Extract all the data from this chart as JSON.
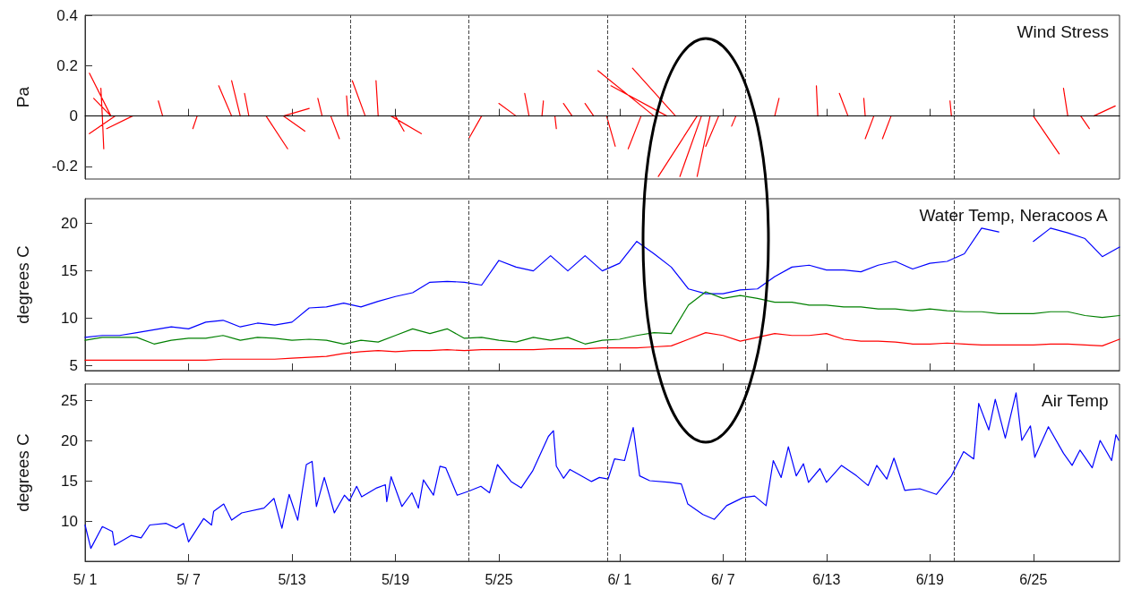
{
  "chart_data": [
    {
      "type": "line",
      "title": "Wind Stress",
      "ylabel": "Pa",
      "tick_labels": "y",
      "xlim": [
        "--05-01",
        "--06-30"
      ],
      "xticks": [
        {
          "value": "--05-01",
          "label": null
        },
        {
          "value": "--05-07",
          "label": null
        },
        {
          "value": "--05-13",
          "label": null
        },
        {
          "value": "--05-19",
          "label": null
        },
        {
          "value": "--05-25",
          "label": null
        },
        {
          "value": "--06-01",
          "label": null
        },
        {
          "value": "--06-07",
          "label": null
        },
        {
          "value": "--06-13",
          "label": null
        },
        {
          "value": "--06-19",
          "label": null
        },
        {
          "value": "--06-25",
          "label": null
        }
      ],
      "ylim": [
        -0.25,
        0.4
      ],
      "yticks": [
        -0.2,
        0,
        0.2,
        0.4
      ],
      "ref_lines": [
        {
          "axis": "y",
          "value": 0,
          "label": null,
          "color": "#000000"
        },
        {
          "axis": "x",
          "value": "--05-16T09:00",
          "label": null,
          "color": "#444444",
          "line_style": "dashed"
        },
        {
          "axis": "x",
          "value": "--05-23T06:00",
          "label": null,
          "color": "#444444",
          "line_style": "dashed"
        },
        {
          "axis": "x",
          "value": "--05-31T07:00",
          "label": null,
          "color": "#444444",
          "line_style": "dashed"
        },
        {
          "axis": "x",
          "value": "--06-08T07:00",
          "label": null,
          "color": "#444444",
          "line_style": "dashed"
        },
        {
          "axis": "x",
          "value": "--06-20T10:00",
          "label": null,
          "color": "#444444",
          "line_style": "dashed"
        }
      ],
      "series": [
        {
          "color": "#ff0000",
          "x": [
            "--05-02T12:00",
            "--05-01T06:00",
            null,
            "--05-02T00:00",
            "--05-01T22:00",
            null,
            "--05-02T12:00",
            "--05-01T12:00",
            null,
            "--05-02T00:00",
            "--05-02T02:00",
            null,
            "--05-02T18:00",
            "--05-01T06:00",
            null,
            "--05-03T18:00",
            "--05-02T06:00",
            null,
            "--05-05T12:00",
            "--05-05T06:00",
            null,
            "--05-07T12:00",
            "--05-07T06:00",
            null,
            "--05-09T12:00",
            "--05-08T18:00",
            null,
            "--05-10T00:00",
            "--05-09T12:00",
            null,
            "--05-10T12:00",
            "--05-10T06:00",
            null,
            "--05-11T12:00",
            "--05-12T18:00",
            null,
            "--05-12T12:00",
            "--05-13T18:00",
            null,
            "--05-12T12:00",
            "--05-14T00:00",
            null,
            "--05-14T18:00",
            "--05-14T12:00",
            null,
            "--05-15T06:00",
            "--05-15T18:00",
            null,
            "--05-16T06:00",
            "--05-16T04:00",
            null,
            "--05-17T06:00",
            "--05-16T12:00",
            null,
            "--05-18T00:00",
            "--05-17T21:00",
            null,
            "--05-18T18:00",
            "--05-20T12:00",
            null,
            "--05-19T00:00",
            "--05-19T12:00",
            null,
            "--05-24T00:00",
            "--05-23T06:00",
            null,
            "--05-26T00:00",
            "--05-25T00:00",
            null,
            "--05-26T18:00",
            "--05-26T12:00",
            null,
            "--05-27T12:00",
            "--05-27T14:00",
            null,
            "--05-28T06:00",
            "--05-28T08:00",
            null,
            "--05-29T06:00",
            "--05-28T18:00",
            null,
            "--05-30T12:00",
            "--05-30T00:00",
            null,
            "--06-03T00:00",
            "--05-30T18:00",
            null,
            "--06-04T06:00",
            "--06-01T18:00",
            null,
            "--06-03T18:00",
            "--05-31T12:00",
            null,
            "--05-31T06:00",
            "--05-31T18:00",
            null,
            "--06-02T06:00",
            "--06-01T12:00",
            null,
            "--06-05T12:00",
            "--06-03T06:00",
            null,
            "--06-05T18:00",
            "--06-04T12:00",
            null,
            "--06-06T06:00",
            "--06-05T12:00",
            null,
            "--06-06T18:00",
            "--06-06T00:00",
            null,
            "--06-07T18:00",
            "--06-07T12:00",
            null,
            "--06-10T00:00",
            "--06-10T06:00",
            null,
            "--06-12T12:00",
            "--06-12T10:00",
            null,
            "--06-14T06:00",
            "--06-13T18:00",
            null,
            "--06-15T06:00",
            "--06-15T04:00",
            null,
            "--06-15T18:00",
            "--06-15T06:00",
            null,
            "--06-16T18:00",
            "--06-16T06:00",
            null,
            "--06-20T06:00",
            "--06-20T04:00",
            null,
            "--06-25T00:00",
            "--06-26T12:00",
            null,
            "--06-27T00:00",
            "--06-26T18:00",
            null,
            "--06-27T18:00",
            "--06-28T06:00",
            null,
            "--06-28T12:00",
            "--06-29T18:00"
          ],
          "values": [
            0,
            0.17,
            null,
            0,
            0.11,
            null,
            0,
            0.07,
            null,
            0,
            -0.13,
            null,
            0,
            -0.07,
            null,
            0,
            -0.05,
            null,
            0,
            0.06,
            null,
            0,
            -0.05,
            null,
            0,
            0.12,
            null,
            0,
            0.14,
            null,
            0,
            0.09,
            null,
            0,
            -0.13,
            null,
            0,
            -0.06,
            null,
            0,
            0.03,
            null,
            0,
            0.07,
            null,
            0,
            -0.09,
            null,
            0,
            0.08,
            null,
            0,
            0.14,
            null,
            0,
            0.14,
            null,
            0,
            -0.07,
            null,
            0,
            -0.06,
            null,
            0,
            -0.09,
            null,
            0,
            0.05,
            null,
            0,
            0.09,
            null,
            0,
            0.06,
            null,
            0,
            -0.05,
            null,
            0,
            0.05,
            null,
            0,
            0.05,
            null,
            0,
            0.18,
            null,
            0,
            0.19,
            null,
            0,
            0.12,
            null,
            0,
            -0.12,
            null,
            0,
            -0.13,
            null,
            0,
            -0.24,
            null,
            0,
            -0.24,
            null,
            0,
            -0.24,
            null,
            0,
            -0.12,
            null,
            0,
            -0.04,
            null,
            0,
            0.07,
            null,
            0,
            0.12,
            null,
            0,
            0.09,
            null,
            0,
            0.07,
            null,
            0,
            -0.09,
            null,
            0,
            -0.09,
            null,
            0,
            0.06,
            null,
            0,
            -0.15,
            null,
            0,
            0.11,
            null,
            0,
            -0.05,
            null,
            0,
            0.04
          ]
        }
      ]
    },
    {
      "type": "line",
      "title": "Water Temp, Neracoos A",
      "ylabel": "degrees C",
      "tick_labels": "y",
      "xlim": [
        "--05-01",
        "--06-30"
      ],
      "xticks": [
        {
          "value": "--05-01",
          "label": null
        },
        {
          "value": "--05-07",
          "label": null
        },
        {
          "value": "--05-13",
          "label": null
        },
        {
          "value": "--05-19",
          "label": null
        },
        {
          "value": "--05-25",
          "label": null
        },
        {
          "value": "--06-01",
          "label": null
        },
        {
          "value": "--06-07",
          "label": null
        },
        {
          "value": "--06-13",
          "label": null
        },
        {
          "value": "--06-19",
          "label": null
        },
        {
          "value": "--06-25",
          "label": null
        }
      ],
      "ylim": [
        4.5,
        22.6
      ],
      "yticks": [
        5,
        10,
        15,
        20
      ],
      "ref_lines": [
        {
          "axis": "x",
          "value": "--05-16T09:00",
          "label": null,
          "color": "#444444",
          "line_style": "dashed"
        },
        {
          "axis": "x",
          "value": "--05-23T06:00",
          "label": null,
          "color": "#444444",
          "line_style": "dashed"
        },
        {
          "axis": "x",
          "value": "--05-31T07:00",
          "label": null,
          "color": "#444444",
          "line_style": "dashed"
        },
        {
          "axis": "x",
          "value": "--06-08T07:00",
          "label": null,
          "color": "#444444",
          "line_style": "dashed"
        },
        {
          "axis": "x",
          "value": "--06-20T10:00",
          "label": null,
          "color": "#444444",
          "line_style": "dashed"
        }
      ],
      "x": [
        "--05-01",
        "--05-02",
        "--05-03",
        "--05-04",
        "--05-05",
        "--05-06",
        "--05-07",
        "--05-08",
        "--05-09",
        "--05-10",
        "--05-11",
        "--05-12",
        "--05-13",
        "--05-14",
        "--05-15",
        "--05-16",
        "--05-17",
        "--05-18",
        "--05-19",
        "--05-20",
        "--05-21",
        "--05-22",
        "--05-23",
        "--05-24",
        "--05-25",
        "--05-26",
        "--05-27",
        "--05-28",
        "--05-29",
        "--05-30",
        "--05-31",
        "--06-01",
        "--06-02",
        "--06-03",
        "--06-04",
        "--06-05",
        "--06-06",
        "--06-07",
        "--06-08",
        "--06-09",
        "--06-10",
        "--06-11",
        "--06-12",
        "--06-13",
        "--06-14",
        "--06-15",
        "--06-16",
        "--06-17",
        "--06-18",
        "--06-19",
        "--06-20",
        "--06-21",
        "--06-22",
        "--06-23",
        "--06-24",
        "--06-25",
        "--06-26",
        "--06-27",
        "--06-28",
        "--06-29",
        "--06-30"
      ],
      "series": [
        {
          "color": "#0000ff",
          "values": [
            8.0,
            8.2,
            8.2,
            8.5,
            8.8,
            9.1,
            8.9,
            9.6,
            9.8,
            9.1,
            9.5,
            9.3,
            9.6,
            11.1,
            11.2,
            11.6,
            11.2,
            11.8,
            12.3,
            12.7,
            13.8,
            13.9,
            13.8,
            13.5,
            16.1,
            15.4,
            15.0,
            16.6,
            15.0,
            16.6,
            15.0,
            15.8,
            18.1,
            16.8,
            15.4,
            13.1,
            12.6,
            12.6,
            13.0,
            13.1,
            14.4,
            15.4,
            15.6,
            15.1,
            15.1,
            14.9,
            15.6,
            16.0,
            15.2,
            15.8,
            16.0,
            16.8,
            19.5,
            19.1,
            null,
            18.1,
            19.5,
            19.0,
            18.4,
            16.5,
            17.5
          ]
        },
        {
          "color": "#008000",
          "values": [
            7.7,
            8.0,
            8.0,
            8.0,
            7.3,
            7.7,
            7.9,
            7.9,
            8.2,
            7.7,
            8.0,
            7.9,
            7.7,
            7.8,
            7.7,
            7.3,
            7.7,
            7.5,
            8.2,
            8.9,
            8.4,
            8.9,
            7.9,
            8.0,
            7.7,
            7.5,
            8.0,
            7.7,
            8.0,
            7.3,
            7.7,
            7.8,
            8.2,
            8.5,
            8.4,
            11.4,
            12.8,
            12.1,
            12.4,
            12.1,
            11.7,
            11.7,
            11.4,
            11.4,
            11.2,
            11.2,
            11.0,
            11.0,
            10.8,
            11.0,
            10.8,
            10.7,
            10.7,
            10.5,
            10.5,
            10.5,
            10.7,
            10.7,
            10.3,
            10.1,
            10.3
          ]
        },
        {
          "color": "#ff0000",
          "values": [
            5.6,
            5.6,
            5.6,
            5.6,
            5.6,
            5.6,
            5.6,
            5.6,
            5.7,
            5.7,
            5.7,
            5.7,
            5.8,
            5.9,
            6.0,
            6.3,
            6.5,
            6.6,
            6.5,
            6.6,
            6.6,
            6.7,
            6.6,
            6.7,
            6.7,
            6.7,
            6.7,
            6.8,
            6.8,
            6.8,
            6.9,
            6.9,
            6.9,
            7.0,
            7.1,
            7.8,
            8.5,
            8.2,
            7.6,
            8.0,
            8.4,
            8.2,
            8.2,
            8.4,
            7.8,
            7.6,
            7.6,
            7.5,
            7.3,
            7.3,
            7.4,
            7.3,
            7.2,
            7.2,
            7.2,
            7.2,
            7.3,
            7.3,
            7.2,
            7.1,
            7.8
          ]
        }
      ]
    },
    {
      "type": "line",
      "title": "Air Temp",
      "ylabel": "degrees C",
      "xlim": [
        "--05-01",
        "--06-30"
      ],
      "xticks": [
        {
          "value": "--05-01",
          "label": "5/ 1"
        },
        {
          "value": "--05-07",
          "label": "5/ 7"
        },
        {
          "value": "--05-13",
          "label": "5/13"
        },
        {
          "value": "--05-19",
          "label": "5/19"
        },
        {
          "value": "--05-25",
          "label": "5/25"
        },
        {
          "value": "--06-01",
          "label": "6/ 1"
        },
        {
          "value": "--06-07",
          "label": "6/ 7"
        },
        {
          "value": "--06-13",
          "label": "6/13"
        },
        {
          "value": "--06-19",
          "label": "6/19"
        },
        {
          "value": "--06-25",
          "label": "6/25"
        }
      ],
      "ylim": [
        5,
        27
      ],
      "yticks": [
        10,
        15,
        20,
        25
      ],
      "ref_lines": [
        {
          "axis": "x",
          "value": "--05-16T09:00",
          "label": null,
          "color": "#444444",
          "line_style": "dashed"
        },
        {
          "axis": "x",
          "value": "--05-23T06:00",
          "label": null,
          "color": "#444444",
          "line_style": "dashed"
        },
        {
          "axis": "x",
          "value": "--05-31T07:00",
          "label": null,
          "color": "#444444",
          "line_style": "dashed"
        },
        {
          "axis": "x",
          "value": "--06-08T07:00",
          "label": null,
          "color": "#444444",
          "line_style": "dashed"
        },
        {
          "axis": "x",
          "value": "--06-20T10:00",
          "label": null,
          "color": "#444444",
          "line_style": "dashed"
        }
      ],
      "series": [
        {
          "color": "#0000ff",
          "x": [
            "--05-01T00:00",
            "--05-01T08:00",
            "--05-02T00:00",
            "--05-02T14:00",
            "--05-02T17:00",
            "--05-03T16:00",
            "--05-04T06:00",
            "--05-04T18:00",
            "--05-05T17:00",
            "--05-06T07:00",
            "--05-06T17:00",
            "--05-07T00:00",
            "--05-07T21:00",
            "--05-08T08:00",
            "--05-08T11:00",
            "--05-09T01:00",
            "--05-09T12:00",
            "--05-10T02:00",
            "--05-11T09:00",
            "--05-11T23:00",
            "--05-12T10:00",
            "--05-12T20:00",
            "--05-13T08:00",
            "--05-13T20:00",
            "--05-14T04:00",
            "--05-14T10:00",
            "--05-14T21:00",
            "--05-15T11:00",
            "--05-16T01:00",
            "--05-16T08:00",
            "--05-16T18:00",
            "--05-17T01:00",
            "--05-17T22:00",
            "--05-18T10:00",
            "--05-18T12:00",
            "--05-18T18:00",
            "--05-19T09:00",
            "--05-19T23:00",
            "--05-20T08:00",
            "--05-20T15:00",
            "--05-21T05:00",
            "--05-21T14:00",
            "--05-21T22:00",
            "--05-22T14:00",
            "--05-23T06:00",
            "--05-23T23:00",
            "--05-24T11:00",
            "--05-24T22:00",
            "--05-25T17:00",
            "--05-26T07:00",
            "--05-26T23:00",
            "--05-27T21:00",
            "--05-28T04:00",
            "--05-28T08:00",
            "--05-28T18:00",
            "--05-29T03:00",
            "--05-30T09:00",
            "--05-30T20:00",
            "--05-31T08:00",
            "--05-31T17:00",
            "--06-01T07:00",
            "--06-01T19:00",
            "--06-02T04:00",
            "--06-02T18:00",
            "--06-03T22:00",
            "--06-04T14:00",
            "--06-04T23:00",
            "--06-05T20:00",
            "--06-06T12:00",
            "--06-07T05:00",
            "--06-08T04:00",
            "--06-08T20:00",
            "--06-09T12:00",
            "--06-09T22:00",
            "--06-10T09:00",
            "--06-10T19:00",
            "--06-11T06:00",
            "--06-11T16:00",
            "--06-11T23:00",
            "--06-12T15:00",
            "--06-13T00:00",
            "--06-13T21:00",
            "--06-14T18:00",
            "--06-15T10:00",
            "--06-15T22:00",
            "--06-16T12:00",
            "--06-16T22:00",
            "--06-17T13:00",
            "--06-18T10:00",
            "--06-19T09:00",
            "--06-20T06:00",
            "--06-20T23:00",
            "--06-21T13:00",
            "--06-21T20:00",
            "--06-22T10:00",
            "--06-22T19:00",
            "--06-23T09:00",
            "--06-23T20:00",
            "--06-24T00:00",
            "--06-24T08:00",
            "--06-24T20:00",
            "--06-25T02:00",
            "--06-25T21:00",
            "--06-26T18:00",
            "--06-27T06:00",
            "--06-27T17:00",
            "--06-28T10:00",
            "--06-28T21:00",
            "--06-29T13:00",
            "--06-29T19:00",
            "--06-29T23:00"
          ],
          "values": [
            9.5,
            6.6,
            9.3,
            8.7,
            7.0,
            8.2,
            7.9,
            9.5,
            9.7,
            9.1,
            9.7,
            7.4,
            10.3,
            9.5,
            11.2,
            12.1,
            10.1,
            11.0,
            11.6,
            12.8,
            9.1,
            13.3,
            10.1,
            17.0,
            17.4,
            11.8,
            15.4,
            11.0,
            13.2,
            12.5,
            14.3,
            13.0,
            14.1,
            14.5,
            12.4,
            15.5,
            11.8,
            13.5,
            11.6,
            15.1,
            13.2,
            16.8,
            16.6,
            13.2,
            13.7,
            14.3,
            13.5,
            17.0,
            14.9,
            14.1,
            16.2,
            20.5,
            21.2,
            16.8,
            15.3,
            16.4,
            14.9,
            15.4,
            15.2,
            17.7,
            17.5,
            21.6,
            15.6,
            15.0,
            14.8,
            14.6,
            12.1,
            10.8,
            10.2,
            11.9,
            12.9,
            13.1,
            11.9,
            17.5,
            15.4,
            19.2,
            15.6,
            17.1,
            14.8,
            16.5,
            14.8,
            16.9,
            15.6,
            14.4,
            16.9,
            15.2,
            17.8,
            13.8,
            14.0,
            13.3,
            15.6,
            18.6,
            17.7,
            24.6,
            21.3,
            25.1,
            20.3,
            24.4,
            25.9,
            20.0,
            21.8,
            17.9,
            21.7,
            18.4,
            16.9,
            18.8,
            16.6,
            20.0,
            17.5,
            20.7,
            20.0
          ]
        }
      ]
    }
  ]
}
